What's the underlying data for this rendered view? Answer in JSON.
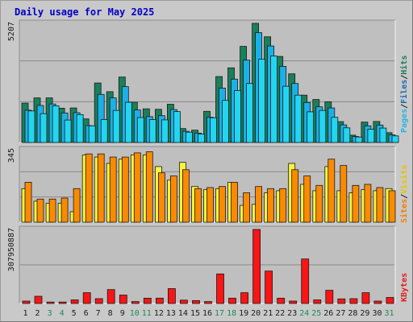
{
  "title": "Daily usage for May 2025",
  "colors": {
    "background": "#c9c9c9",
    "plot_bg": "#bfbfbf",
    "title_blue": "#0000c8",
    "hits": "#1a7f5a",
    "files": "#1ab1e8",
    "pages": "#22d6f2",
    "visits": "#f8f43a",
    "sites": "#fb8a00",
    "kbytes": "#fa1414",
    "weekend_green": "#1e8a58"
  },
  "right_labels": {
    "panel1": [
      {
        "text": "Pages",
        "color": "#22b6e6"
      },
      {
        "text": "/",
        "color": "#1a1a1a"
      },
      {
        "text": "Files",
        "color": "#1a6bb3"
      },
      {
        "text": "/",
        "color": "#1a1a1a"
      },
      {
        "text": "Hits",
        "color": "#1a7f5a"
      }
    ],
    "panel2": [
      {
        "text": "Sites",
        "color": "#f57c00"
      },
      {
        "text": "/",
        "color": "#1a1a1a"
      },
      {
        "text": "Visits",
        "color": "#e8c300"
      }
    ],
    "panel3": [
      {
        "text": "KBytes",
        "color": "#e31a1a"
      }
    ]
  },
  "chart_data": [
    {
      "type": "bar",
      "panel": "hits-files-pages",
      "max_label": "5207",
      "ylim": [
        0,
        5207
      ],
      "categories": [
        "1",
        "2",
        "3",
        "4",
        "5",
        "6",
        "7",
        "8",
        "9",
        "10",
        "11",
        "12",
        "13",
        "14",
        "15",
        "16",
        "17",
        "18",
        "19",
        "20",
        "21",
        "22",
        "23",
        "24",
        "25",
        "26",
        "27",
        "28",
        "29",
        "30",
        "31"
      ],
      "series": [
        {
          "name": "Hits",
          "values": [
            1720,
            1950,
            1950,
            1500,
            1510,
            1030,
            2600,
            2220,
            2860,
            1760,
            1470,
            1450,
            1670,
            610,
            540,
            1360,
            2880,
            3260,
            4200,
            5207,
            4620,
            3760,
            3000,
            2070,
            1880,
            1780,
            910,
            320,
            890,
            920,
            430
          ]
        },
        {
          "name": "Files",
          "values": [
            1410,
            1620,
            1680,
            1290,
            1300,
            740,
            2100,
            1950,
            2440,
            1420,
            1130,
            1170,
            1440,
            490,
            410,
            1100,
            2380,
            2770,
            3600,
            4800,
            4220,
            3330,
            2580,
            1750,
            1560,
            1510,
            770,
            260,
            730,
            760,
            330
          ]
        },
        {
          "name": "Pages",
          "values": [
            1380,
            1260,
            1600,
            980,
            1220,
            730,
            1000,
            1400,
            1760,
            1090,
            1000,
            990,
            1350,
            450,
            370,
            1080,
            1840,
            2270,
            2580,
            3640,
            3780,
            2460,
            2070,
            1340,
            1400,
            1100,
            640,
            240,
            580,
            630,
            290
          ]
        }
      ]
    },
    {
      "type": "bar",
      "panel": "visits-sites",
      "max_label": "345",
      "ylim": [
        0,
        345
      ],
      "categories": [
        "1",
        "2",
        "3",
        "4",
        "5",
        "6",
        "7",
        "8",
        "9",
        "10",
        "11",
        "12",
        "13",
        "14",
        "15",
        "16",
        "17",
        "18",
        "19",
        "20",
        "21",
        "22",
        "23",
        "24",
        "25",
        "26",
        "27",
        "28",
        "29",
        "30",
        "31"
      ],
      "series": [
        {
          "name": "Visits",
          "values": [
            160,
            100,
            90,
            90,
            50,
            320,
            310,
            280,
            300,
            320,
            320,
            265,
            200,
            285,
            170,
            155,
            160,
            190,
            80,
            85,
            140,
            150,
            280,
            180,
            150,
            265,
            150,
            140,
            155,
            150,
            160
          ]
        },
        {
          "name": "Sites",
          "values": [
            190,
            110,
            110,
            115,
            160,
            325,
            325,
            310,
            310,
            330,
            335,
            235,
            220,
            250,
            160,
            165,
            170,
            190,
            140,
            170,
            160,
            160,
            250,
            220,
            175,
            300,
            270,
            175,
            180,
            165,
            150
          ]
        }
      ]
    },
    {
      "type": "bar",
      "panel": "kbytes",
      "max_label": "307950887",
      "ylim": [
        0,
        307950887
      ],
      "categories": [
        "1",
        "2",
        "3",
        "4",
        "5",
        "6",
        "7",
        "8",
        "9",
        "10",
        "11",
        "12",
        "13",
        "14",
        "15",
        "16",
        "17",
        "18",
        "19",
        "20",
        "21",
        "22",
        "23",
        "24",
        "25",
        "26",
        "27",
        "28",
        "29",
        "30",
        "31"
      ],
      "series": [
        {
          "name": "KBytes",
          "values": [
            10000000,
            30000000,
            6000000,
            6000000,
            15000000,
            45000000,
            20000000,
            58000000,
            35000000,
            8000000,
            22000000,
            22000000,
            62000000,
            14000000,
            12000000,
            8000000,
            123000000,
            22000000,
            45000000,
            307950887,
            135000000,
            22000000,
            10000000,
            185000000,
            15000000,
            55000000,
            19000000,
            20000000,
            45000000,
            10000000,
            25000000
          ]
        }
      ]
    }
  ],
  "xaxis": {
    "labels": [
      "1",
      "2",
      "3",
      "4",
      "5",
      "6",
      "7",
      "8",
      "9",
      "10",
      "11",
      "12",
      "13",
      "14",
      "15",
      "16",
      "17",
      "18",
      "19",
      "20",
      "21",
      "22",
      "23",
      "24",
      "25",
      "26",
      "27",
      "28",
      "29",
      "30",
      "31"
    ],
    "weekend_days": [
      "3",
      "4",
      "10",
      "11",
      "17",
      "18",
      "24",
      "25",
      "31"
    ]
  }
}
